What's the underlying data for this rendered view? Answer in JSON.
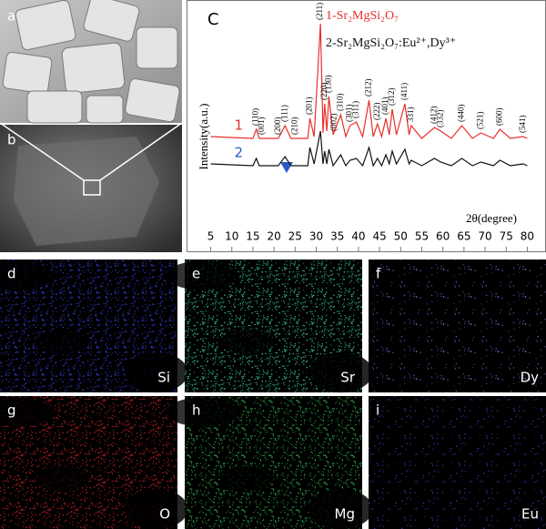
{
  "chart_data": {
    "type": "line",
    "panel_letter": "C",
    "x_label": "2θ(degree)",
    "y_label": "Intensity(a.u.)",
    "xlim": [
      1,
      84
    ],
    "ylim": [
      0,
      100
    ],
    "xticks": [
      5,
      10,
      15,
      20,
      25,
      30,
      35,
      40,
      45,
      50,
      55,
      60,
      65,
      70,
      75,
      80
    ],
    "x": [
      5,
      15,
      15.8,
      16.5,
      21,
      22.6,
      24,
      28,
      28.5,
      29.5,
      31,
      31.6,
      32,
      32.5,
      33,
      34,
      35.8,
      37,
      38,
      39.5,
      41,
      42.5,
      43.5,
      44.5,
      45.5,
      46.5,
      47.3,
      48,
      49,
      51,
      52,
      52.5,
      55,
      58,
      59.5,
      62,
      64.5,
      67,
      69,
      72,
      73.5,
      76,
      79,
      80
    ],
    "series": [
      {
        "name": "1-Sr₂MgSi₂O₇",
        "curve_label": "1",
        "color": "#e8302a",
        "values": [
          30,
          29,
          34,
          29,
          29,
          36,
          29,
          29,
          40,
          30,
          92,
          32,
          48,
          33,
          52,
          31,
          42,
          30,
          36,
          38,
          30,
          50,
          30,
          37,
          30,
          40,
          31,
          45,
          31,
          48,
          31,
          36,
          29,
          35,
          33,
          29,
          36,
          29,
          32,
          29,
          34,
          29,
          30,
          29
        ]
      },
      {
        "name": "2-Sr₂MgSi₂O₇:Eu²⁺,Dy³⁺",
        "curve_label": "2",
        "color": "#111111",
        "values": [
          15,
          14,
          18,
          14,
          14,
          19,
          14,
          14,
          24,
          15,
          33,
          15,
          22,
          15,
          23,
          14,
          20,
          14,
          17,
          18,
          14,
          24,
          14,
          18,
          14,
          20,
          15,
          22,
          15,
          23,
          15,
          17,
          14,
          18,
          16,
          14,
          18,
          14,
          16,
          14,
          17,
          14,
          15,
          14
        ]
      }
    ],
    "peak_labels": [
      {
        "label": "(110)",
        "x": 15.8
      },
      {
        "label": "(001)",
        "x": 17.2
      },
      {
        "label": "(200)",
        "x": 21
      },
      {
        "label": "(111)",
        "x": 22.6
      },
      {
        "label": "(210)",
        "x": 25
      },
      {
        "label": "(201)",
        "x": 28.5
      },
      {
        "label": "(211)",
        "x": 31
      },
      {
        "label": "(220)",
        "x": 32
      },
      {
        "label": "(130)",
        "x": 33
      },
      {
        "label": "(002)",
        "x": 34.3
      },
      {
        "label": "(310)",
        "x": 35.8
      },
      {
        "label": "(301)",
        "x": 38
      },
      {
        "label": "(311)",
        "x": 39.5
      },
      {
        "label": "(212)",
        "x": 42.5
      },
      {
        "label": "(222)",
        "x": 44.5
      },
      {
        "label": "(401)",
        "x": 46.5
      },
      {
        "label": "(312)",
        "x": 48
      },
      {
        "label": "(411)",
        "x": 51
      },
      {
        "label": "331)",
        "x": 52.5
      },
      {
        "label": "(412)",
        "x": 58
      },
      {
        "label": "(332)",
        "x": 59.5
      },
      {
        "label": "(440)",
        "x": 64.5
      },
      {
        "label": "(521)",
        "x": 69
      },
      {
        "label": "(600)",
        "x": 73.5
      },
      {
        "label": "(541)",
        "x": 79
      }
    ]
  },
  "sem_panels": [
    {
      "letter": "a"
    },
    {
      "letter": "b"
    }
  ],
  "map_panels": [
    {
      "letter": "d",
      "element": "Si",
      "color": "#3a3ad8"
    },
    {
      "letter": "e",
      "element": "Sr",
      "color": "#3fd6b0"
    },
    {
      "letter": "f",
      "element": "Dy",
      "color": "#8a5ad0"
    },
    {
      "letter": "g",
      "element": "O",
      "color": "#d8262a"
    },
    {
      "letter": "h",
      "element": "Mg",
      "color": "#2fb04a"
    },
    {
      "letter": "i",
      "element": "Eu",
      "color": "#5a3ad8"
    }
  ]
}
